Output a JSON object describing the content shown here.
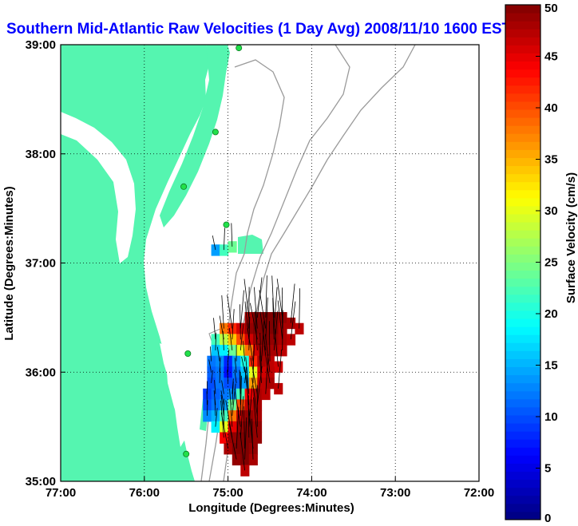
{
  "chart_data": {
    "type": "heatmap",
    "title": "Southern Mid-Atlantic Raw Velocities (1 Day Avg) 2008/11/10 1600 EST",
    "xlabel": "Longitude (Degrees:Minutes)",
    "ylabel": "Latitude (Degrees:Minutes)",
    "x_ticks": [
      {
        "value": -77,
        "label": "77:00"
      },
      {
        "value": -76,
        "label": "76:00"
      },
      {
        "value": -75,
        "label": "75:00"
      },
      {
        "value": -74,
        "label": "74:00"
      },
      {
        "value": -73,
        "label": "73:00"
      },
      {
        "value": -72,
        "label": "72:00"
      }
    ],
    "y_ticks": [
      {
        "value": 35,
        "label": "35:00"
      },
      {
        "value": 36,
        "label": "36:00"
      },
      {
        "value": 37,
        "label": "37:00"
      },
      {
        "value": 38,
        "label": "38:00"
      },
      {
        "value": 39,
        "label": "39:00"
      }
    ],
    "xlim": [
      -77,
      -72
    ],
    "ylim": [
      35,
      39
    ],
    "grid": true,
    "colorbar": {
      "label": "Surface Velocity (cm/s)",
      "min": 0,
      "max": 50,
      "ticks": [
        {
          "value": 0,
          "label": "0"
        },
        {
          "value": 5,
          "label": "5"
        },
        {
          "value": 10,
          "label": "10"
        },
        {
          "value": 15,
          "label": "15"
        },
        {
          "value": 20,
          "label": "20"
        },
        {
          "value": 25,
          "label": "25"
        },
        {
          "value": 30,
          "label": "30"
        },
        {
          "value": 35,
          "label": "35"
        },
        {
          "value": 40,
          "label": "40"
        },
        {
          "value": 45,
          "label": "45"
        },
        {
          "value": 50,
          "label": "50"
        }
      ],
      "colormap": "jet"
    },
    "velocity_cells": [
      {
        "lon": -75.15,
        "lat": 37.12,
        "speed": 14
      },
      {
        "lon": -75.05,
        "lat": 37.12,
        "speed": 22
      },
      {
        "lon": -74.95,
        "lat": 37.15,
        "speed": 24
      },
      {
        "lon": -74.75,
        "lat": 36.5,
        "speed": 48
      },
      {
        "lon": -74.65,
        "lat": 36.5,
        "speed": 50
      },
      {
        "lon": -74.55,
        "lat": 36.5,
        "speed": 50
      },
      {
        "lon": -74.45,
        "lat": 36.5,
        "speed": 50
      },
      {
        "lon": -74.35,
        "lat": 36.5,
        "speed": 49
      },
      {
        "lon": -74.25,
        "lat": 36.45,
        "speed": 48
      },
      {
        "lon": -74.15,
        "lat": 36.4,
        "speed": 47
      },
      {
        "lon": -75.05,
        "lat": 36.4,
        "speed": 38
      },
      {
        "lon": -74.95,
        "lat": 36.4,
        "speed": 42
      },
      {
        "lon": -74.85,
        "lat": 36.4,
        "speed": 46
      },
      {
        "lon": -74.75,
        "lat": 36.4,
        "speed": 49
      },
      {
        "lon": -74.65,
        "lat": 36.4,
        "speed": 50
      },
      {
        "lon": -74.55,
        "lat": 36.4,
        "speed": 50
      },
      {
        "lon": -74.45,
        "lat": 36.4,
        "speed": 50
      },
      {
        "lon": -74.35,
        "lat": 36.4,
        "speed": 48
      },
      {
        "lon": -75.15,
        "lat": 36.3,
        "speed": 22
      },
      {
        "lon": -75.05,
        "lat": 36.3,
        "speed": 28
      },
      {
        "lon": -74.95,
        "lat": 36.3,
        "speed": 34
      },
      {
        "lon": -74.85,
        "lat": 36.3,
        "speed": 40
      },
      {
        "lon": -74.75,
        "lat": 36.3,
        "speed": 46
      },
      {
        "lon": -74.65,
        "lat": 36.3,
        "speed": 49
      },
      {
        "lon": -74.55,
        "lat": 36.3,
        "speed": 50
      },
      {
        "lon": -74.45,
        "lat": 36.3,
        "speed": 49
      },
      {
        "lon": -74.35,
        "lat": 36.3,
        "speed": 48
      },
      {
        "lon": -74.25,
        "lat": 36.3,
        "speed": 47
      },
      {
        "lon": -75.15,
        "lat": 36.2,
        "speed": 16
      },
      {
        "lon": -75.05,
        "lat": 36.2,
        "speed": 18
      },
      {
        "lon": -74.95,
        "lat": 36.2,
        "speed": 24
      },
      {
        "lon": -74.85,
        "lat": 36.2,
        "speed": 30
      },
      {
        "lon": -74.75,
        "lat": 36.2,
        "speed": 38
      },
      {
        "lon": -74.65,
        "lat": 36.2,
        "speed": 46
      },
      {
        "lon": -74.55,
        "lat": 36.2,
        "speed": 49
      },
      {
        "lon": -74.45,
        "lat": 36.2,
        "speed": 48
      },
      {
        "lon": -74.35,
        "lat": 36.2,
        "speed": 47
      },
      {
        "lon": -75.2,
        "lat": 36.1,
        "speed": 12
      },
      {
        "lon": -75.1,
        "lat": 36.1,
        "speed": 13
      },
      {
        "lon": -75.0,
        "lat": 36.1,
        "speed": 8
      },
      {
        "lon": -74.9,
        "lat": 36.1,
        "speed": 14
      },
      {
        "lon": -74.8,
        "lat": 36.1,
        "speed": 20
      },
      {
        "lon": -74.7,
        "lat": 36.1,
        "speed": 42
      },
      {
        "lon": -74.6,
        "lat": 36.1,
        "speed": 48
      },
      {
        "lon": -74.5,
        "lat": 36.1,
        "speed": 47
      },
      {
        "lon": -74.4,
        "lat": 36.05,
        "speed": 46
      },
      {
        "lon": -75.2,
        "lat": 36.0,
        "speed": 11
      },
      {
        "lon": -75.1,
        "lat": 36.0,
        "speed": 12
      },
      {
        "lon": -75.0,
        "lat": 36.0,
        "speed": 7
      },
      {
        "lon": -74.9,
        "lat": 36.0,
        "speed": 12
      },
      {
        "lon": -74.8,
        "lat": 36.0,
        "speed": 16
      },
      {
        "lon": -74.7,
        "lat": 36.0,
        "speed": 30
      },
      {
        "lon": -74.6,
        "lat": 36.0,
        "speed": 46
      },
      {
        "lon": -74.5,
        "lat": 36.0,
        "speed": 47
      },
      {
        "lon": -75.2,
        "lat": 35.9,
        "speed": 10
      },
      {
        "lon": -75.1,
        "lat": 35.9,
        "speed": 12
      },
      {
        "lon": -75.0,
        "lat": 35.9,
        "speed": 10
      },
      {
        "lon": -74.9,
        "lat": 35.9,
        "speed": 11
      },
      {
        "lon": -74.8,
        "lat": 35.9,
        "speed": 14
      },
      {
        "lon": -74.7,
        "lat": 35.9,
        "speed": 36
      },
      {
        "lon": -74.6,
        "lat": 35.9,
        "speed": 47
      },
      {
        "lon": -74.5,
        "lat": 35.9,
        "speed": 48
      },
      {
        "lon": -74.4,
        "lat": 35.85,
        "speed": 47
      },
      {
        "lon": -75.25,
        "lat": 35.8,
        "speed": 9
      },
      {
        "lon": -75.15,
        "lat": 35.8,
        "speed": 11
      },
      {
        "lon": -75.05,
        "lat": 35.8,
        "speed": 12
      },
      {
        "lon": -74.95,
        "lat": 35.8,
        "speed": 13
      },
      {
        "lon": -74.85,
        "lat": 35.8,
        "speed": 22
      },
      {
        "lon": -74.75,
        "lat": 35.8,
        "speed": 44
      },
      {
        "lon": -74.65,
        "lat": 35.8,
        "speed": 48
      },
      {
        "lon": -74.55,
        "lat": 35.8,
        "speed": 47
      },
      {
        "lon": -75.25,
        "lat": 35.7,
        "speed": 10
      },
      {
        "lon": -75.15,
        "lat": 35.7,
        "speed": 12
      },
      {
        "lon": -75.05,
        "lat": 35.7,
        "speed": 14
      },
      {
        "lon": -74.95,
        "lat": 35.7,
        "speed": 24
      },
      {
        "lon": -74.85,
        "lat": 35.7,
        "speed": 40
      },
      {
        "lon": -74.75,
        "lat": 35.7,
        "speed": 47
      },
      {
        "lon": -74.65,
        "lat": 35.7,
        "speed": 48
      },
      {
        "lon": -75.25,
        "lat": 35.6,
        "speed": 13
      },
      {
        "lon": -75.15,
        "lat": 35.6,
        "speed": 15
      },
      {
        "lon": -75.05,
        "lat": 35.6,
        "speed": 22
      },
      {
        "lon": -74.95,
        "lat": 35.6,
        "speed": 38
      },
      {
        "lon": -74.85,
        "lat": 35.6,
        "speed": 47
      },
      {
        "lon": -74.75,
        "lat": 35.6,
        "speed": 49
      },
      {
        "lon": -74.65,
        "lat": 35.6,
        "speed": 48
      },
      {
        "lon": -75.15,
        "lat": 35.5,
        "speed": 18
      },
      {
        "lon": -75.05,
        "lat": 35.5,
        "speed": 30
      },
      {
        "lon": -74.95,
        "lat": 35.5,
        "speed": 45
      },
      {
        "lon": -74.85,
        "lat": 35.5,
        "speed": 49
      },
      {
        "lon": -74.75,
        "lat": 35.5,
        "speed": 50
      },
      {
        "lon": -74.65,
        "lat": 35.5,
        "speed": 49
      },
      {
        "lon": -75.05,
        "lat": 35.4,
        "speed": 44
      },
      {
        "lon": -74.95,
        "lat": 35.4,
        "speed": 49
      },
      {
        "lon": -74.85,
        "lat": 35.4,
        "speed": 50
      },
      {
        "lon": -74.75,
        "lat": 35.4,
        "speed": 50
      },
      {
        "lon": -74.65,
        "lat": 35.4,
        "speed": 49
      },
      {
        "lon": -75.0,
        "lat": 35.3,
        "speed": 48
      },
      {
        "lon": -74.9,
        "lat": 35.3,
        "speed": 50
      },
      {
        "lon": -74.8,
        "lat": 35.3,
        "speed": 50
      },
      {
        "lon": -74.7,
        "lat": 35.3,
        "speed": 49
      },
      {
        "lon": -74.9,
        "lat": 35.2,
        "speed": 49
      },
      {
        "lon": -74.8,
        "lat": 35.2,
        "speed": 50
      },
      {
        "lon": -74.7,
        "lat": 35.2,
        "speed": 48
      },
      {
        "lon": -74.8,
        "lat": 35.1,
        "speed": 47
      }
    ],
    "buoy_sites": [
      {
        "lon": -74.87,
        "lat": 38.97
      },
      {
        "lon": -75.15,
        "lat": 38.2
      },
      {
        "lon": -75.53,
        "lat": 37.7
      },
      {
        "lon": -75.02,
        "lat": 37.35
      },
      {
        "lon": -75.48,
        "lat": 36.17
      },
      {
        "lon": -75.5,
        "lat": 35.25
      }
    ]
  }
}
